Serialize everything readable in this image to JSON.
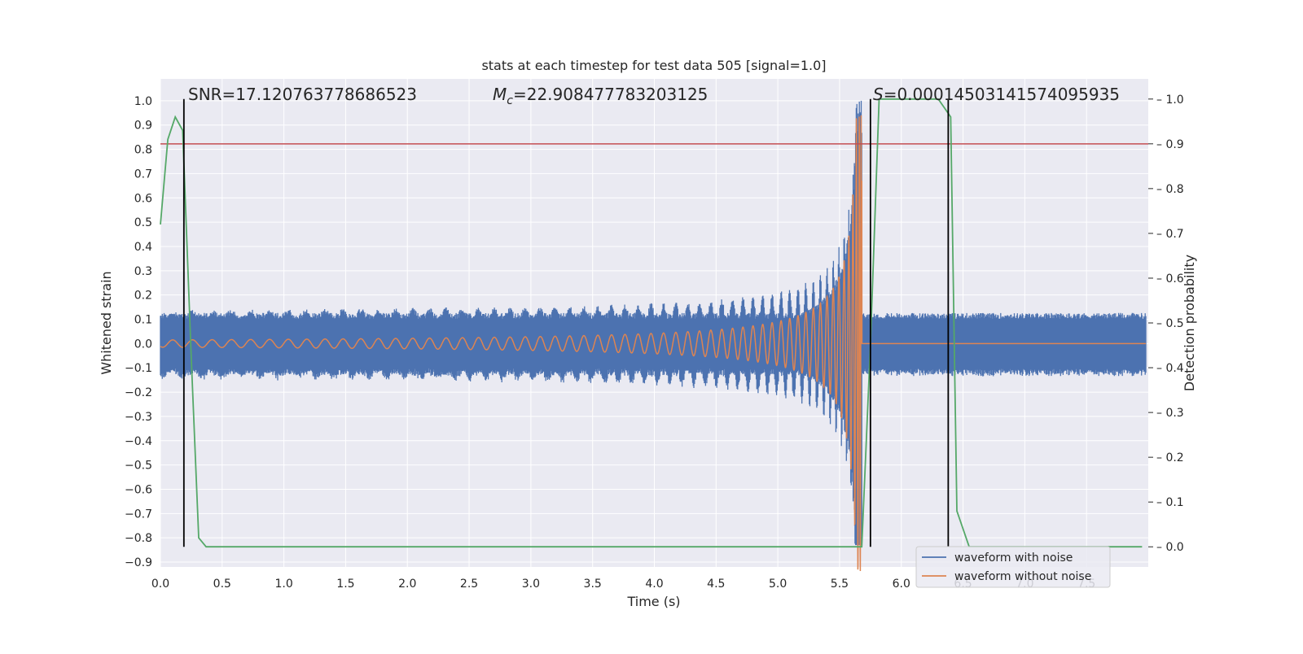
{
  "chart_data": {
    "type": "line",
    "title": "stats at each timestep for test data 505 [signal=1.0]",
    "xlabel": "Time (s)",
    "ylabel": "Whitened strain",
    "y2label": "Detection probability",
    "xlim": [
      0.0,
      8.0
    ],
    "ylim": [
      -0.92,
      1.09
    ],
    "y2lim": [
      -0.045,
      1.045
    ],
    "xticks": [
      "0.0",
      "0.5",
      "1.0",
      "1.5",
      "2.0",
      "2.5",
      "3.0",
      "3.5",
      "4.0",
      "4.5",
      "5.0",
      "5.5",
      "6.0",
      "6.5",
      "7.0",
      "7.5"
    ],
    "yticks": [
      "1.0",
      "0.9",
      "0.8",
      "0.7",
      "0.6",
      "0.5",
      "0.4",
      "0.3",
      "0.2",
      "0.1",
      "0.0",
      "−0.1",
      "−0.2",
      "−0.3",
      "−0.4",
      "−0.5",
      "−0.6",
      "−0.7",
      "−0.8",
      "−0.9"
    ],
    "y2ticks": [
      "1.0",
      "0.9",
      "0.8",
      "0.7",
      "0.6",
      "0.5",
      "0.4",
      "0.3",
      "0.2",
      "0.1",
      "0.0"
    ],
    "grid": true,
    "legend_position": "lower-right",
    "annotations": {
      "snr": "SNR=17.120763778686523",
      "mc_symbol": "M",
      "mc_sub": "c",
      "mc_value": "=22.908477783203125",
      "s_symbol": "S",
      "s_value": "=0.00014503141574095935"
    },
    "series": [
      {
        "name": "waveform with noise",
        "color": "#4c72b0",
        "noise_level": 0.12,
        "merger_time": 5.68,
        "peak_value": 1.0
      },
      {
        "name": "waveform without noise",
        "color": "#dd8452",
        "start_amplitude": 0.015,
        "merger_time": 5.68,
        "peak_value": 0.94
      },
      {
        "name": "detection probability",
        "color": "#55a868",
        "x": [
          0.0,
          0.06,
          0.12,
          0.18,
          0.25,
          0.31,
          0.37,
          5.65,
          5.68,
          5.75,
          5.82,
          6.0,
          6.3,
          6.35,
          6.4,
          6.45,
          6.55,
          7.95
        ],
        "y": [
          0.72,
          0.91,
          0.96,
          0.93,
          0.42,
          0.02,
          0.0,
          0.0,
          0.0,
          0.45,
          1.0,
          1.0,
          1.0,
          0.98,
          0.96,
          0.08,
          0.0,
          0.0
        ]
      }
    ],
    "threshold": {
      "value": 0.9,
      "color": "#c44e52"
    },
    "vertical_lines": [
      0.19,
      5.75,
      6.38
    ]
  }
}
